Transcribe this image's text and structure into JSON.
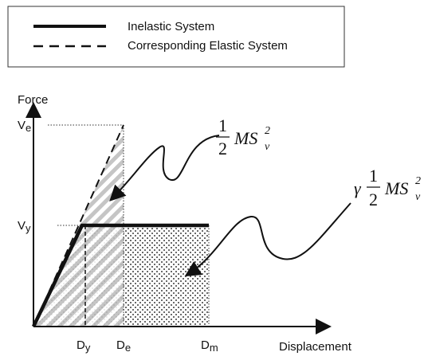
{
  "legend": {
    "items": [
      {
        "label": "Inelastic System"
      },
      {
        "label": "Corresponding Elastic System"
      }
    ]
  },
  "axes": {
    "y_label": "Force",
    "x_label": "Displacement",
    "y_ticks": [
      {
        "main": "V",
        "sub": "e"
      },
      {
        "main": "V",
        "sub": "y"
      }
    ],
    "x_ticks": [
      {
        "main": "D",
        "sub": "y"
      },
      {
        "main": "D",
        "sub": "e"
      },
      {
        "main": "D",
        "sub": "m"
      }
    ]
  },
  "formulas": [
    {
      "numerator": "1",
      "denominator": "2",
      "main": "MS",
      "subscript": "v",
      "superscript": "2"
    },
    {
      "prefix": "γ",
      "numerator": "1",
      "denominator": "2",
      "main": "MS",
      "subscript": "v",
      "superscript": "2"
    }
  ]
}
